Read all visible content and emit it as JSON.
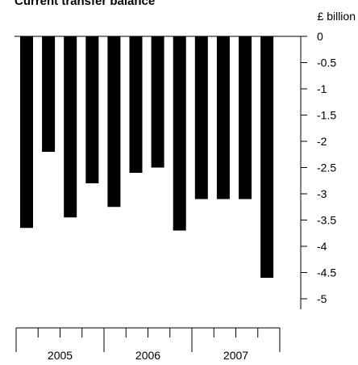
{
  "chart_data": {
    "type": "bar",
    "title": "Current transfer balance",
    "unit_label": "£ billion",
    "categories": [
      "2005 Q1",
      "2005 Q2",
      "2005 Q3",
      "2005 Q4",
      "2006 Q1",
      "2006 Q2",
      "2006 Q3",
      "2006 Q4",
      "2007 Q1",
      "2007 Q2",
      "2007 Q3",
      "2007 Q4"
    ],
    "values": [
      -3.65,
      -2.2,
      -3.45,
      -2.8,
      -3.25,
      -2.6,
      -2.5,
      -3.7,
      -3.1,
      -3.1,
      -3.1,
      -4.6
    ],
    "ylim": [
      -5.2,
      0
    ],
    "y_ticks": [
      0,
      -0.5,
      -1,
      -1.5,
      -2,
      -2.5,
      -3,
      -3.5,
      -4,
      -4.5,
      -5
    ],
    "y_tick_labels": [
      "0",
      "-0.5",
      "-1",
      "-1.5",
      "-2",
      "-2.5",
      "-3",
      "-3.5",
      "-4",
      "-4.5",
      "-5"
    ],
    "x_group_labels": [
      "2005",
      "2006",
      "2007"
    ],
    "bar_color": "#000000",
    "grid": false
  }
}
